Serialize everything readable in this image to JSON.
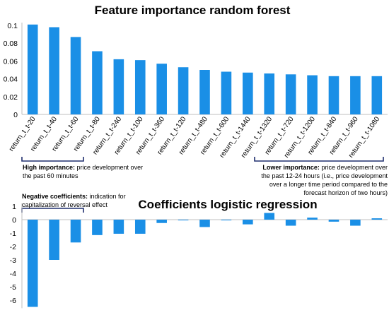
{
  "colors": {
    "bar": "#1a8fe6",
    "axis": "#bfbfbf",
    "bracket": "#1f2e6e"
  },
  "chart_data": [
    {
      "type": "bar",
      "title": "Feature importance random forest",
      "categories": [
        "return_t_t-20",
        "return_t_t-40",
        "return_t_t-60",
        "return_t_t-80",
        "return_t_t-240",
        "return_t_t-100",
        "return_t_t-360",
        "return_t_t-120",
        "return_t_t-480",
        "return_t_t-600",
        "return_t_t-1440",
        "return_t_t-1320",
        "return_t_t-720",
        "return_t_t-1200",
        "return_t_t-840",
        "return_t_t-960",
        "return_t_t-1080"
      ],
      "values": [
        0.101,
        0.098,
        0.087,
        0.071,
        0.062,
        0.061,
        0.057,
        0.053,
        0.05,
        0.048,
        0.047,
        0.046,
        0.045,
        0.044,
        0.043,
        0.043,
        0.043
      ],
      "ylim": [
        0,
        0.1
      ],
      "yticks": [
        "0",
        "0.02",
        "0.04",
        "0.06",
        "0.08",
        "0.1"
      ],
      "annotations": [
        {
          "bold": "High importance:",
          "text": " price development over the past 60 minutes"
        },
        {
          "bold": "Lower importance:",
          "text": " price development over the past 12-24 hours (i.e., price development over a longer time period compared to the forecast horizon of two hours)"
        }
      ]
    },
    {
      "type": "bar",
      "title": "Coefficients logistic regression",
      "categories": [
        "return_t_t-20",
        "return_t_t-40",
        "return_t_t-60",
        "return_t_t-80",
        "return_t_t-240",
        "return_t_t-100",
        "return_t_t-360",
        "return_t_t-120",
        "return_t_t-480",
        "return_t_t-600",
        "return_t_t-1440",
        "return_t_t-1320",
        "return_t_t-720",
        "return_t_t-1200",
        "return_t_t-840",
        "return_t_t-960",
        "return_t_t-1080"
      ],
      "values": [
        -6.5,
        -3.0,
        -1.7,
        -1.15,
        -1.05,
        -1.05,
        -0.25,
        -0.05,
        -0.55,
        -0.05,
        -0.35,
        0.5,
        -0.45,
        0.15,
        -0.15,
        -0.45,
        0.1
      ],
      "ylim": [
        -6.5,
        1
      ],
      "yticks": [
        "1",
        "0",
        "-1",
        "-2",
        "-3",
        "-4",
        "-5",
        "-6"
      ],
      "annotations": [
        {
          "bold": "Negative coefficients:",
          "text": " indication for capitalization of reversal effect"
        }
      ]
    }
  ]
}
